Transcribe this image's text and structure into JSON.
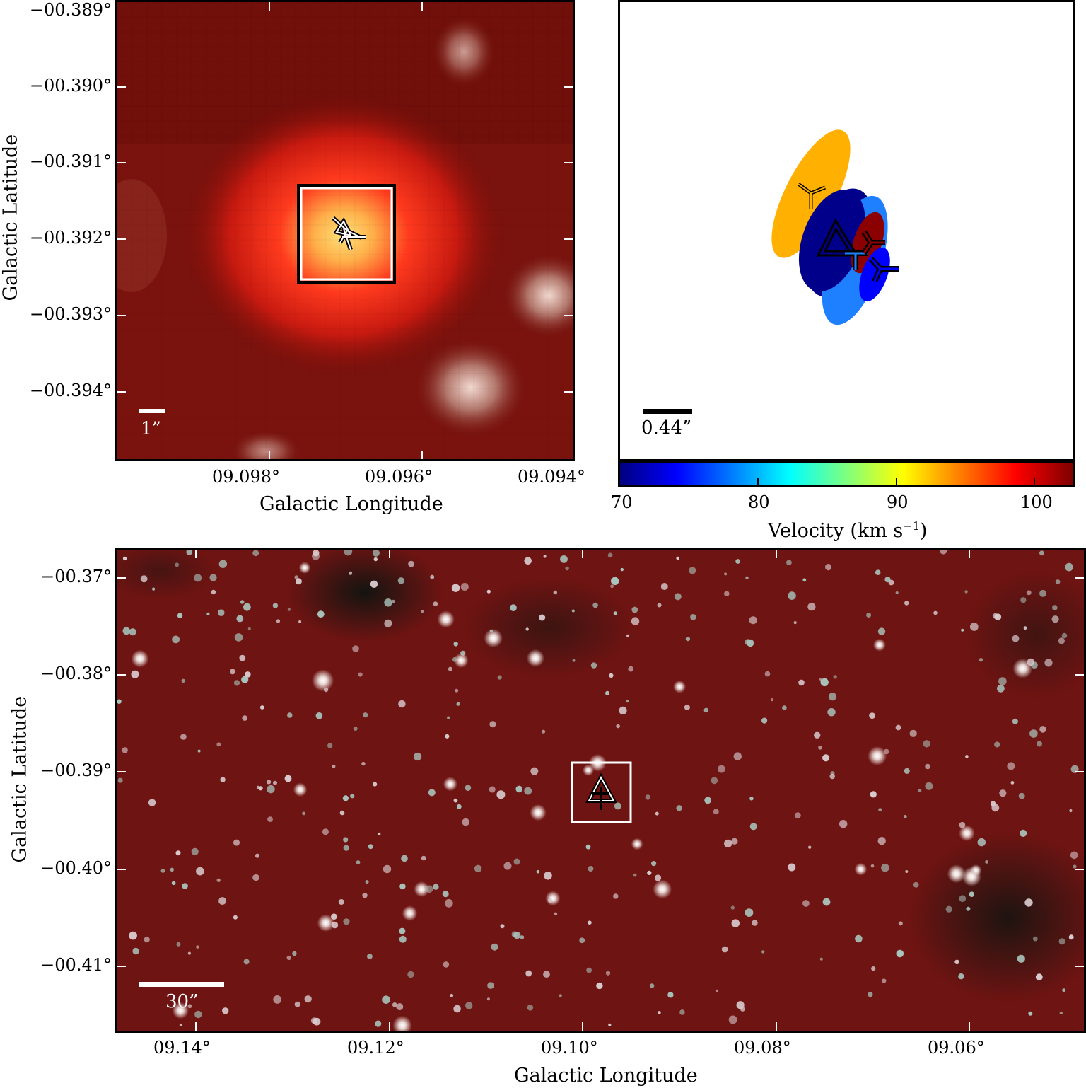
{
  "top_left": {
    "ylabel": "Galactic Latitude",
    "xlabel": "Galactic Longitude",
    "y_ticks": [
      "−00.389°",
      "−00.390°",
      "−00.391°",
      "−00.392°",
      "−00.393°",
      "−00.394°"
    ],
    "x_ticks": [
      "09.098°",
      "09.096°",
      "09.094°"
    ],
    "scale_label": "1”"
  },
  "top_right": {
    "scale_label": "0.44”",
    "colorbar_label": "Velocity (km s",
    "colorbar_label_sup": "−1",
    "colorbar_label_end": ")",
    "colorbar_ticks": [
      "70",
      "80",
      "90",
      "100"
    ],
    "colormap": [
      "#00007f",
      "#0000ff",
      "#007fff",
      "#00ffff",
      "#7fff7f",
      "#ffff00",
      "#ff7f00",
      "#ff0000",
      "#7f0000"
    ]
  },
  "bottom": {
    "ylabel": "Galactic Latitude",
    "xlabel": "Galactic Longitude",
    "y_ticks": [
      "−00.37°",
      "−00.38°",
      "−00.39°",
      "−00.40°",
      "−00.41°"
    ],
    "x_ticks": [
      "09.14°",
      "09.12°",
      "09.10°",
      "09.08°",
      "09.06°"
    ],
    "scale_label": "30”"
  },
  "maser_components": [
    {
      "color": "#ffb000",
      "marker": "tri"
    },
    {
      "color": "#00008b",
      "marker": "triangle"
    },
    {
      "color": "#1e7fff",
      "marker": "tri"
    },
    {
      "color": "#8b0000",
      "marker": "tri"
    },
    {
      "color": "#0000ff",
      "marker": "tri"
    }
  ]
}
